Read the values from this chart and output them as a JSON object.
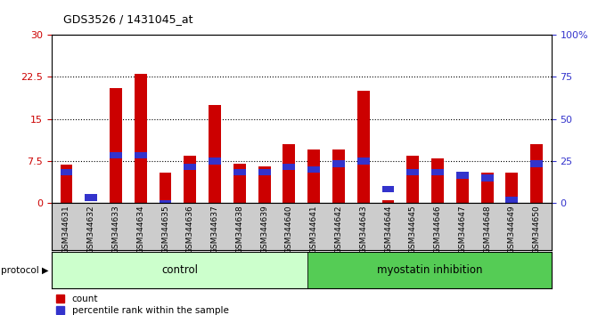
{
  "title": "GDS3526 / 1431045_at",
  "samples": [
    "GSM344631",
    "GSM344632",
    "GSM344633",
    "GSM344634",
    "GSM344635",
    "GSM344636",
    "GSM344637",
    "GSM344638",
    "GSM344639",
    "GSM344640",
    "GSM344641",
    "GSM344642",
    "GSM344643",
    "GSM344644",
    "GSM344645",
    "GSM344646",
    "GSM344647",
    "GSM344648",
    "GSM344649",
    "GSM344650"
  ],
  "count_values": [
    6.8,
    0.0,
    20.5,
    23.0,
    5.5,
    8.5,
    17.5,
    7.0,
    6.5,
    10.5,
    9.5,
    9.5,
    20.0,
    0.5,
    8.5,
    8.0,
    4.5,
    5.5,
    5.5,
    10.5
  ],
  "percentile_values": [
    5.5,
    1.0,
    8.5,
    8.5,
    0.0,
    6.5,
    7.5,
    5.5,
    5.5,
    6.5,
    6.0,
    7.0,
    7.5,
    2.5,
    5.5,
    5.5,
    5.0,
    4.5,
    0.5,
    7.0
  ],
  "control_label": "control",
  "myostatin_label": "myostatin inhibition",
  "protocol_label": "protocol",
  "count_color": "#cc0000",
  "percentile_color": "#3333cc",
  "control_bg": "#ccffcc",
  "myostatin_bg": "#55cc55",
  "sample_band_bg": "#cccccc",
  "ylim_left": [
    0,
    30
  ],
  "ylim_right": [
    0,
    100
  ],
  "yticks_left": [
    0,
    7.5,
    15,
    22.5,
    30
  ],
  "yticks_right": [
    0,
    25,
    50,
    75,
    100
  ],
  "ytick_labels_right": [
    "0",
    "25",
    "50",
    "75",
    "100%"
  ],
  "ytick_labels_left": [
    "0",
    "7.5",
    "15",
    "22.5",
    "30"
  ],
  "hgrid_lines": [
    7.5,
    15,
    22.5
  ],
  "bar_width": 0.5,
  "pct_bar_height": 1.2
}
